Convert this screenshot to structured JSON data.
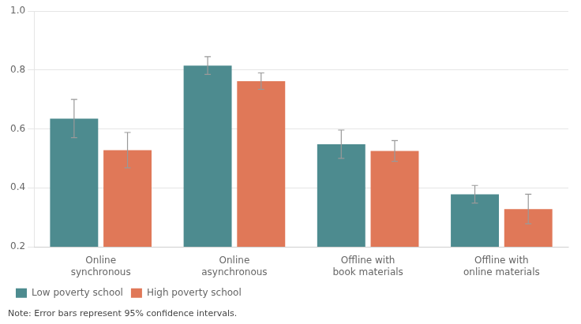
{
  "chart_data": {
    "type": "bar",
    "categories": [
      "Online\nsynchronous",
      "Online\nasynchronous",
      "Offline with\nbook materials",
      "Offline with\nonline materials"
    ],
    "series": [
      {
        "name": "Low poverty school",
        "color": "#4d8b8f",
        "values": [
          0.635,
          0.815,
          0.548,
          0.378
        ],
        "errors": [
          0.065,
          0.03,
          0.048,
          0.03
        ]
      },
      {
        "name": "High poverty school",
        "color": "#e07858",
        "values": [
          0.528,
          0.762,
          0.525,
          0.328
        ],
        "errors": [
          0.06,
          0.028,
          0.035,
          0.05
        ]
      }
    ],
    "ylim": [
      0.2,
      1.0
    ],
    "yticks": [
      0.2,
      0.4,
      0.6,
      0.8,
      {
        "value": 1.0,
        "label": "1.0"
      }
    ],
    "grid": true,
    "legend": "bottom left",
    "annotations": [
      "Note: Error bars represent 95% confidence intervals."
    ]
  }
}
